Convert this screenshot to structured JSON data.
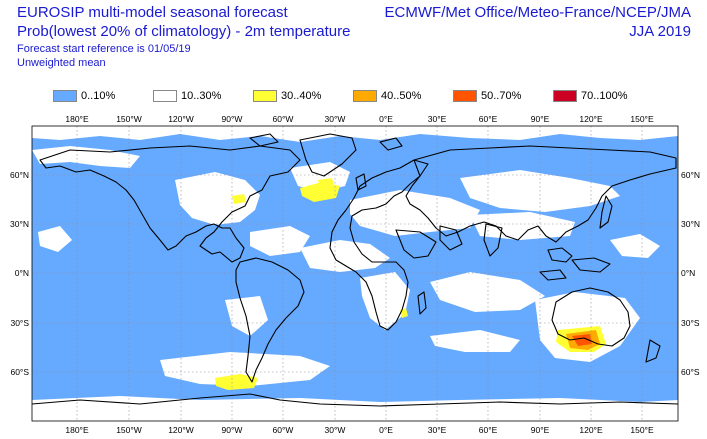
{
  "header": {
    "title_line1": "EUROSIP multi-model seasonal forecast",
    "title_line2": "Prob(lowest 20% of climatology) - 2m temperature",
    "forecast_ref": "Forecast start reference is 01/05/19",
    "weighting": "Unweighted mean",
    "centres": "ECMWF/Met Office/Meteo-France/NCEP/JMA",
    "season": "JJA 2019"
  },
  "legend": [
    {
      "label": "0..10%",
      "color": "#66aaff"
    },
    {
      "label": "10..30%",
      "color": "#ffffff"
    },
    {
      "label": "30..40%",
      "color": "#ffff33"
    },
    {
      "label": "40..50%",
      "color": "#ffaa00"
    },
    {
      "label": "50..70%",
      "color": "#ff5500"
    },
    {
      "label": "70..100%",
      "color": "#cc0022"
    }
  ],
  "axes": {
    "lon_labels": [
      "180°E",
      "150°W",
      "120°W",
      "90°W",
      "60°W",
      "30°W",
      "0°E",
      "30°E",
      "60°E",
      "90°E",
      "120°E",
      "150°E"
    ],
    "lat_labels": [
      "60°N",
      "30°N",
      "0°N",
      "30°S",
      "60°S"
    ]
  },
  "colors": {
    "low_prob": "#66aaff",
    "mid_prob": "#ffffff",
    "coast": "#000000"
  }
}
